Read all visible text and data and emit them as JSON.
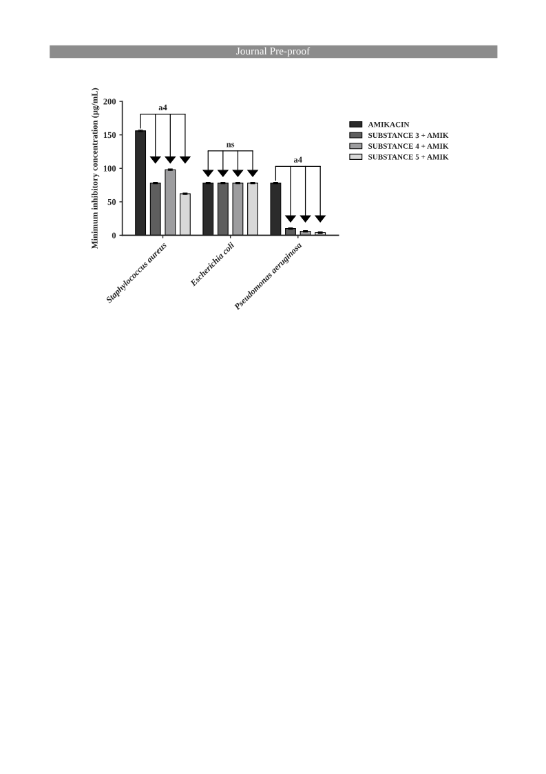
{
  "chart_data": {
    "type": "bar",
    "ylabel": "Minimum inhibitory concentration (µg/mL)",
    "categories": [
      "Staphylococcus aureus",
      "Escherichia coli",
      "Pseudomonas aeruginosa"
    ],
    "series": [
      {
        "name": "AMIKACIN",
        "color": "#2b2b2b",
        "values": [
          156,
          78,
          78
        ],
        "errors": [
          1,
          1,
          1
        ]
      },
      {
        "name": "SUBSTANCE 3 + AMIK",
        "color": "#5e5e5e",
        "values": [
          78,
          78,
          10
        ],
        "errors": [
          1,
          1,
          1
        ]
      },
      {
        "name": "SUBSTANCE 4 + AMIK",
        "color": "#9d9d9f",
        "values": [
          98,
          78,
          6
        ],
        "errors": [
          1,
          1,
          1
        ]
      },
      {
        "name": "SUBSTANCE 5 + AMIK",
        "color": "#d8d8d8",
        "values": [
          62,
          78,
          4
        ],
        "errors": [
          1,
          1,
          1
        ]
      }
    ],
    "ylim": [
      0,
      200
    ],
    "yticks": [
      0,
      50,
      100,
      150,
      200
    ],
    "grid": false,
    "legend": "right",
    "annotations": [
      "Journal Pre-proof",
      "a4",
      "ns",
      "a4"
    ]
  }
}
